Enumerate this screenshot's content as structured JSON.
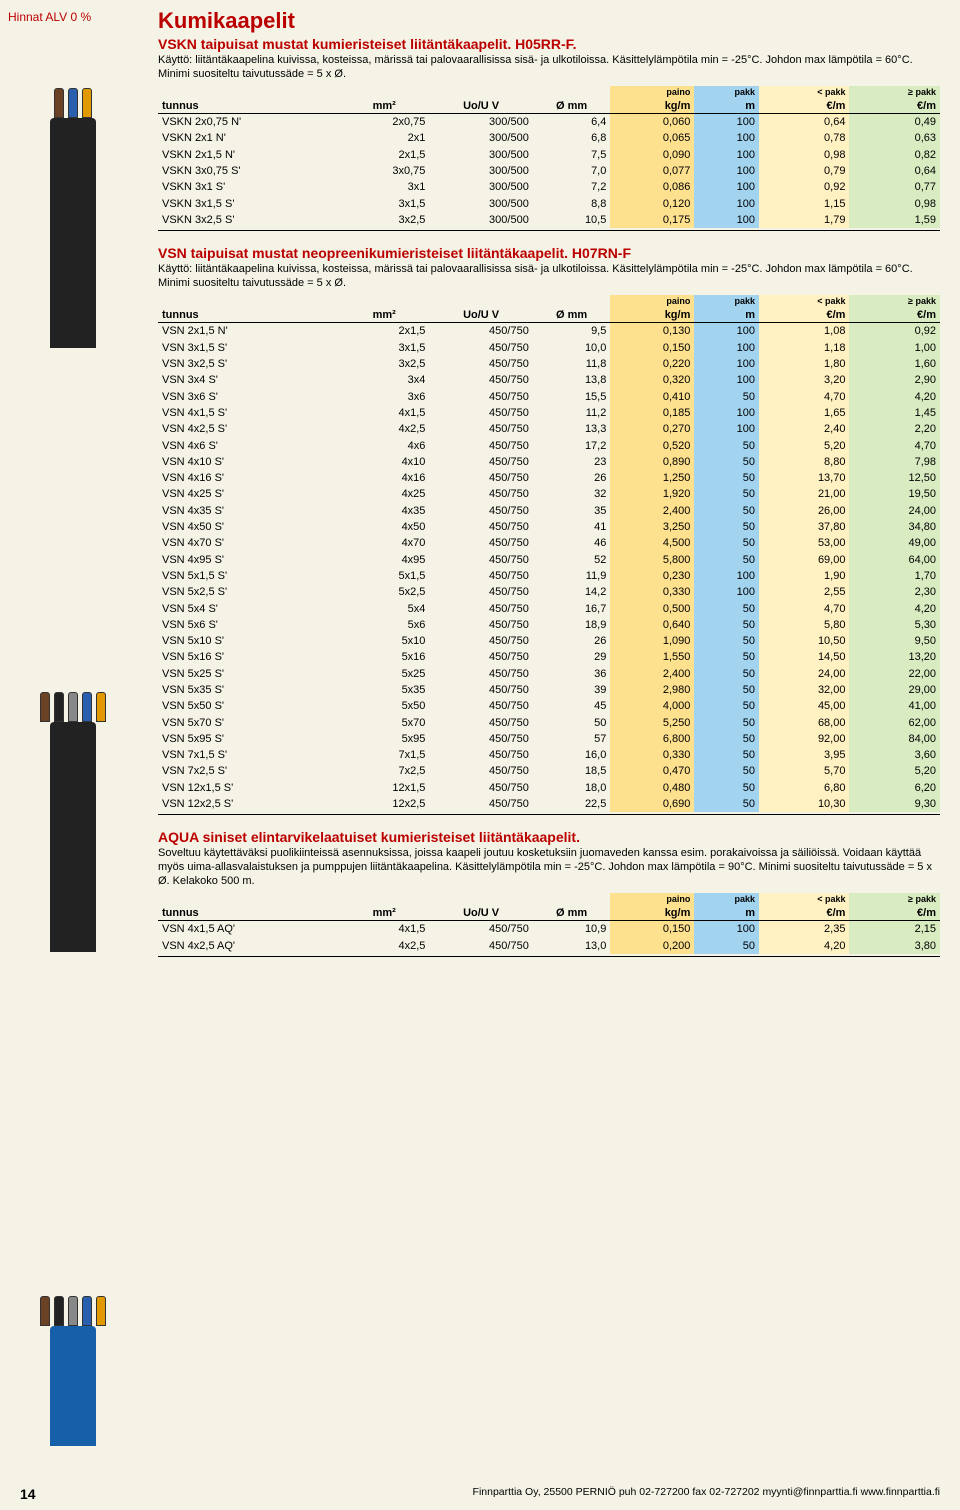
{
  "vat_note": "Hinnat ALV 0 %",
  "page_number": "14",
  "footer": "Finnparttia Oy, 25500 PERNIÖ   puh 02-727200   fax 02-727202   myynti@finnparttia.fi   www.finnparttia.fi",
  "main_title": "Kumikaapelit",
  "colors": {
    "accent": "#b00",
    "bg": "#f5f2e6",
    "kgm_bg": "#fde18f",
    "m_bg": "#a2d3ef",
    "lt_bg": "#fff1c2",
    "ge_bg": "#d9ecc1"
  },
  "col_headers": {
    "tunnus": "tunnus",
    "mm2": "mm²",
    "uou": "Uo/U V",
    "diam": "Ø mm",
    "paino": "paino",
    "kgm": "kg/m",
    "pakk": "pakk",
    "m": "m",
    "lt_pakk": "< pakk",
    "ge_pakk": "≥ pakk",
    "eur_m": "€/m"
  },
  "sections": [
    {
      "title": "VSKN taipuisat mustat kumieristeiset liitäntäkaapelit. H05RR-F.",
      "intro": "Käyttö: liitäntäkaapelina kuivissa, kosteissa, märissä tai palovaarallisissa sisä- ja ulkotiloissa. Käsittelylämpötila min = -25°C. Johdon max lämpötila = 60°C. Minimi suositeltu taivutussäde = 5 x Ø.",
      "rows": [
        [
          "VSKN 2x0,75 N'",
          "2x0,75",
          "300/500",
          "6,4",
          "0,060",
          "100",
          "0,64",
          "0,49"
        ],
        [
          "VSKN 2x1 N'",
          "2x1",
          "300/500",
          "6,8",
          "0,065",
          "100",
          "0,78",
          "0,63"
        ],
        [
          "VSKN 2x1,5 N'",
          "2x1,5",
          "300/500",
          "7,5",
          "0,090",
          "100",
          "0,98",
          "0,82"
        ],
        [
          "VSKN 3x0,75 S'",
          "3x0,75",
          "300/500",
          "7,0",
          "0,077",
          "100",
          "0,79",
          "0,64"
        ],
        [
          "VSKN 3x1 S'",
          "3x1",
          "300/500",
          "7,2",
          "0,086",
          "100",
          "0,92",
          "0,77"
        ],
        [
          "VSKN 3x1,5 S'",
          "3x1,5",
          "300/500",
          "8,8",
          "0,120",
          "100",
          "1,15",
          "0,98"
        ],
        [
          "VSKN 3x2,5 S'",
          "3x2,5",
          "300/500",
          "10,5",
          "0,175",
          "100",
          "1,79",
          "1,59"
        ]
      ]
    },
    {
      "title": "VSN taipuisat mustat neopreenikumieristeiset liitäntäkaapelit. H07RN-F",
      "intro": "Käyttö: liitäntäkaapelina kuivissa, kosteissa, märissä tai palovaarallisissa sisä- ja ulkotiloissa. Käsittelylämpötila min = -25°C. Johdon max lämpötila = 60°C. Minimi suositeltu taivutussäde = 5 x Ø.",
      "rows": [
        [
          "VSN 2x1,5 N'",
          "2x1,5",
          "450/750",
          "9,5",
          "0,130",
          "100",
          "1,08",
          "0,92"
        ],
        [
          "VSN 3x1,5 S'",
          "3x1,5",
          "450/750",
          "10,0",
          "0,150",
          "100",
          "1,18",
          "1,00"
        ],
        [
          "VSN 3x2,5 S'",
          "3x2,5",
          "450/750",
          "11,8",
          "0,220",
          "100",
          "1,80",
          "1,60"
        ],
        [
          "VSN 3x4 S'",
          "3x4",
          "450/750",
          "13,8",
          "0,320",
          "100",
          "3,20",
          "2,90"
        ],
        [
          "VSN 3x6 S'",
          "3x6",
          "450/750",
          "15,5",
          "0,410",
          "50",
          "4,70",
          "4,20"
        ],
        [
          "VSN 4x1,5 S'",
          "4x1,5",
          "450/750",
          "11,2",
          "0,185",
          "100",
          "1,65",
          "1,45"
        ],
        [
          "VSN 4x2,5 S'",
          "4x2,5",
          "450/750",
          "13,3",
          "0,270",
          "100",
          "2,40",
          "2,20"
        ],
        [
          "VSN 4x6 S'",
          "4x6",
          "450/750",
          "17,2",
          "0,520",
          "50",
          "5,20",
          "4,70"
        ],
        [
          "VSN 4x10 S'",
          "4x10",
          "450/750",
          "23",
          "0,890",
          "50",
          "8,80",
          "7,98"
        ],
        [
          "VSN 4x16 S'",
          "4x16",
          "450/750",
          "26",
          "1,250",
          "50",
          "13,70",
          "12,50"
        ],
        [
          "VSN 4x25 S'",
          "4x25",
          "450/750",
          "32",
          "1,920",
          "50",
          "21,00",
          "19,50"
        ],
        [
          "VSN 4x35 S'",
          "4x35",
          "450/750",
          "35",
          "2,400",
          "50",
          "26,00",
          "24,00"
        ],
        [
          "VSN 4x50 S'",
          "4x50",
          "450/750",
          "41",
          "3,250",
          "50",
          "37,80",
          "34,80"
        ],
        [
          "VSN 4x70 S'",
          "4x70",
          "450/750",
          "46",
          "4,500",
          "50",
          "53,00",
          "49,00"
        ],
        [
          "VSN 4x95 S'",
          "4x95",
          "450/750",
          "52",
          "5,800",
          "50",
          "69,00",
          "64,00"
        ],
        [
          "VSN 5x1,5 S'",
          "5x1,5",
          "450/750",
          "11,9",
          "0,230",
          "100",
          "1,90",
          "1,70"
        ],
        [
          "VSN 5x2,5 S'",
          "5x2,5",
          "450/750",
          "14,2",
          "0,330",
          "100",
          "2,55",
          "2,30"
        ],
        [
          "VSN 5x4 S'",
          "5x4",
          "450/750",
          "16,7",
          "0,500",
          "50",
          "4,70",
          "4,20"
        ],
        [
          "VSN 5x6 S'",
          "5x6",
          "450/750",
          "18,9",
          "0,640",
          "50",
          "5,80",
          "5,30"
        ],
        [
          "VSN 5x10 S'",
          "5x10",
          "450/750",
          "26",
          "1,090",
          "50",
          "10,50",
          "9,50"
        ],
        [
          "VSN 5x16 S'",
          "5x16",
          "450/750",
          "29",
          "1,550",
          "50",
          "14,50",
          "13,20"
        ],
        [
          "VSN 5x25 S'",
          "5x25",
          "450/750",
          "36",
          "2,400",
          "50",
          "24,00",
          "22,00"
        ],
        [
          "VSN 5x35 S'",
          "5x35",
          "450/750",
          "39",
          "2,980",
          "50",
          "32,00",
          "29,00"
        ],
        [
          "VSN 5x50 S'",
          "5x50",
          "450/750",
          "45",
          "4,000",
          "50",
          "45,00",
          "41,00"
        ],
        [
          "VSN 5x70 S'",
          "5x70",
          "450/750",
          "50",
          "5,250",
          "50",
          "68,00",
          "62,00"
        ],
        [
          "VSN 5x95 S'",
          "5x95",
          "450/750",
          "57",
          "6,800",
          "50",
          "92,00",
          "84,00"
        ],
        [
          "VSN 7x1,5 S'",
          "7x1,5",
          "450/750",
          "16,0",
          "0,330",
          "50",
          "3,95",
          "3,60"
        ],
        [
          "VSN 7x2,5 S'",
          "7x2,5",
          "450/750",
          "18,5",
          "0,470",
          "50",
          "5,70",
          "5,20"
        ],
        [
          "VSN 12x1,5 S'",
          "12x1,5",
          "450/750",
          "18,0",
          "0,480",
          "50",
          "6,80",
          "6,20"
        ],
        [
          "VSN 12x2,5 S'",
          "12x2,5",
          "450/750",
          "22,5",
          "0,690",
          "50",
          "10,30",
          "9,30"
        ]
      ]
    },
    {
      "title": "AQUA siniset elintarvikelaatuiset kumieristeiset liitäntäkaapelit.",
      "intro": "Soveltuu käytettäväksi puolikiinteissä asennuksissa, joissa kaapeli joutuu kosketuksiin juomaveden kanssa esim. porakaivoissa ja säiliöissä. Voidaan käyttää myös uima-allasvalaistuksen ja pumppujen liitäntäkaapelina. Käsittelylämpötila min = -25°C. Johdon max lämpötila = 90°C. Minimi suositeltu taivutussäde = 5 x Ø. Kelakoko 500 m.",
      "rows": [
        [
          "VSN 4x1,5 AQ'",
          "4x1,5",
          "450/750",
          "10,9",
          "0,150",
          "100",
          "2,35",
          "2,15"
        ],
        [
          "VSN 4x2,5 AQ'",
          "4x2,5",
          "450/750",
          "13,0",
          "0,200",
          "50",
          "4,20",
          "3,80"
        ]
      ]
    }
  ],
  "cable_images": [
    {
      "jacket": "#222",
      "jacket_h": 230,
      "conductors": [
        "#6b4226",
        "#2a5fb0",
        "#e09a00"
      ]
    },
    {
      "jacket": "#222",
      "jacket_h": 230,
      "conductors": [
        "#6b4226",
        "#222",
        "#888",
        "#2a5fb0",
        "#e09a00"
      ]
    },
    {
      "jacket": "#1560a8",
      "jacket_h": 120,
      "conductors": [
        "#6b4226",
        "#222",
        "#888",
        "#2a5fb0",
        "#e09a00"
      ]
    }
  ]
}
